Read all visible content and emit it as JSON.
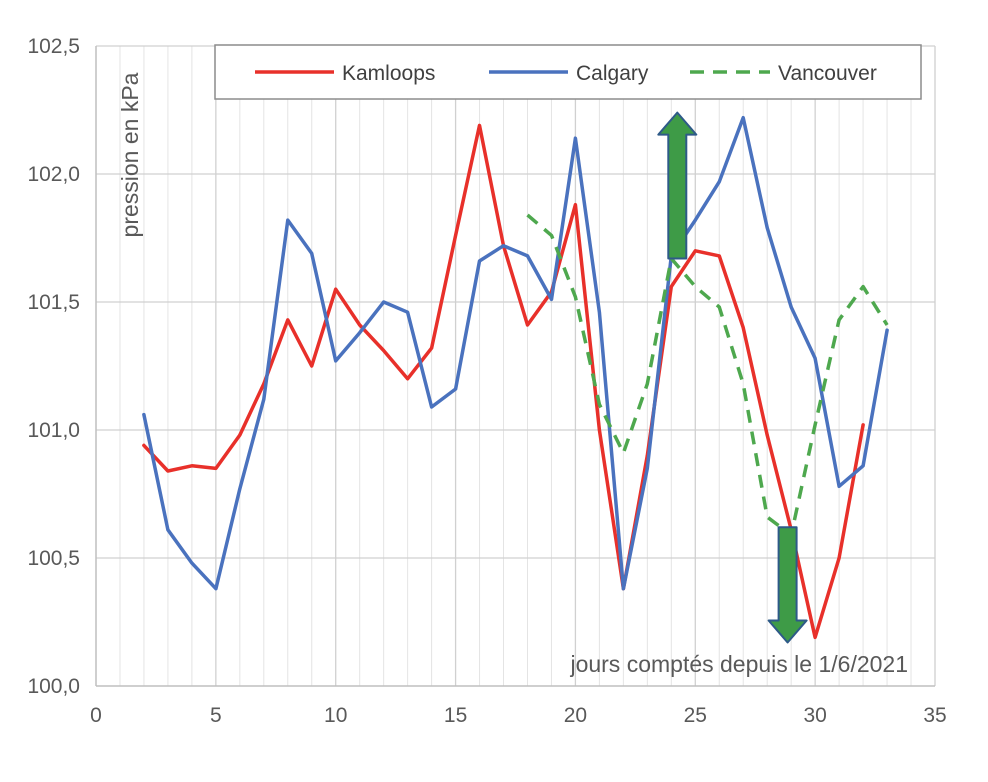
{
  "chart_data": {
    "type": "line",
    "xlabel": "jours comptés depuis le 1/6/2021",
    "ylabel": "pression en kPa",
    "xlim": [
      0,
      35
    ],
    "ylim": [
      100.0,
      102.5
    ],
    "x_ticks": [
      0,
      5,
      10,
      15,
      20,
      25,
      30,
      35
    ],
    "x_tick_labels": [
      "0",
      "5",
      "10",
      "15",
      "20",
      "25",
      "30",
      "35"
    ],
    "y_ticks": [
      100.0,
      100.5,
      101.0,
      101.5,
      102.0,
      102.5
    ],
    "y_tick_labels": [
      "100,0",
      "100,5",
      "101,0",
      "101,5",
      "102,0",
      "102,5"
    ],
    "grid": true,
    "minor_x_grid": true,
    "legend_position": "top-right",
    "series": [
      {
        "name": "Kamloops",
        "color": "#E8302A",
        "dash": "solid",
        "x": [
          2,
          3,
          4,
          5,
          6,
          7,
          8,
          9,
          10,
          11,
          12,
          13,
          14,
          15,
          16,
          17,
          18,
          19,
          20,
          21,
          22,
          23,
          24,
          25,
          26,
          27,
          28,
          29,
          30,
          31,
          32
        ],
        "y": [
          100.94,
          100.84,
          100.86,
          100.85,
          100.98,
          101.18,
          101.43,
          101.25,
          101.55,
          101.41,
          101.31,
          101.2,
          101.32,
          101.76,
          102.19,
          101.72,
          101.41,
          101.54,
          101.88,
          101.0,
          100.38,
          100.9,
          101.56,
          101.7,
          101.68,
          101.4,
          100.98,
          100.61,
          100.19,
          100.5,
          101.02
        ]
      },
      {
        "name": "Calgary",
        "color": "#4A72BE",
        "dash": "solid",
        "x": [
          2,
          3,
          4,
          5,
          6,
          7,
          8,
          9,
          10,
          11,
          12,
          13,
          14,
          15,
          16,
          17,
          18,
          19,
          20,
          21,
          22,
          23,
          24,
          25,
          26,
          27,
          28,
          29,
          30,
          31,
          32,
          33
        ],
        "y": [
          101.06,
          100.61,
          100.48,
          100.38,
          100.77,
          101.12,
          101.82,
          101.69,
          101.27,
          101.38,
          101.5,
          101.46,
          101.09,
          101.16,
          101.66,
          101.72,
          101.68,
          101.51,
          102.14,
          101.46,
          100.38,
          100.85,
          101.68,
          101.82,
          101.97,
          102.22,
          101.79,
          101.48,
          101.28,
          100.78,
          100.86,
          101.39
        ]
      },
      {
        "name": "Vancouver",
        "color": "#4EA84E",
        "dash": "dashed",
        "x": [
          18,
          19,
          20,
          21,
          22,
          23,
          24,
          25,
          26,
          27,
          28,
          29,
          30,
          31,
          32,
          33
        ],
        "y": [
          101.84,
          101.76,
          101.52,
          101.1,
          100.91,
          101.18,
          101.67,
          101.56,
          101.48,
          101.18,
          100.66,
          100.59,
          101.02,
          101.43,
          101.56,
          101.41
        ]
      }
    ],
    "arrows": [
      {
        "direction": "up",
        "x": 24.25,
        "y_base": 101.67,
        "y_tip": 102.24,
        "color": "#3E9B47"
      },
      {
        "direction": "down",
        "x": 28.85,
        "y_base": 100.62,
        "y_tip": 100.17,
        "color": "#3E9B47"
      }
    ]
  }
}
